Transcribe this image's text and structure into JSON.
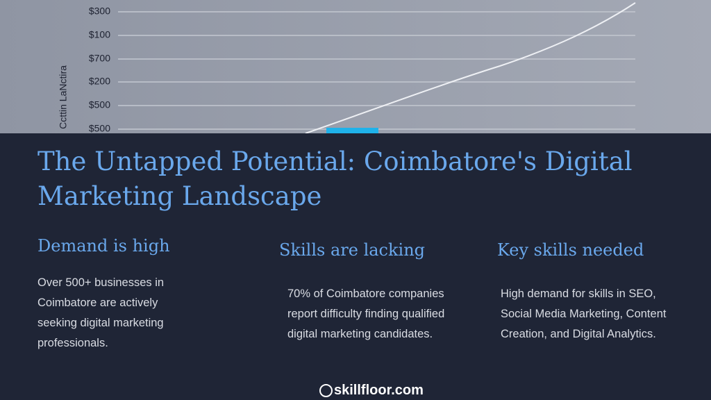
{
  "image": {
    "axis_label": "Ccttin LaNctira",
    "labels": [
      "$300",
      "$100",
      "$700",
      "$200",
      "$500",
      "$500"
    ]
  },
  "title": "The Untapped Potential: Coimbatore's Digital Marketing Landscape",
  "columns": [
    {
      "heading": "Demand is high",
      "text": "Over 500+ businesses in Coimbatore are actively seeking digital marketing professionals."
    },
    {
      "heading": "Skills are lacking",
      "text": "70% of Coimbatore companies report difficulty finding qualified digital marketing candidates."
    },
    {
      "heading": "Key skills needed",
      "text": "High demand for skills in SEO, Social Media Marketing, Content Creation, and Digital Analytics."
    }
  ],
  "footer": "skillfloor.com"
}
